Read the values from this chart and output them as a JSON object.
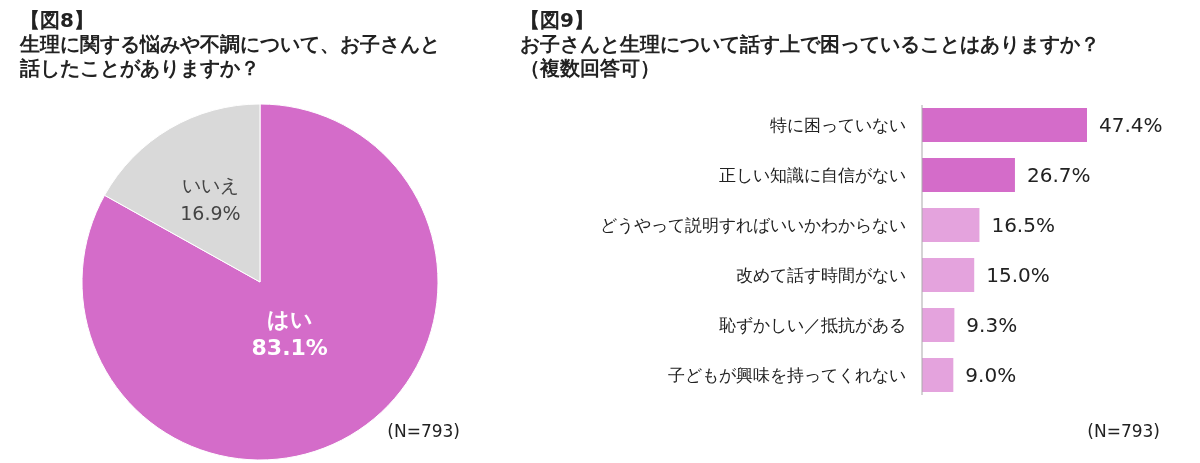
{
  "chart_data": [
    {
      "type": "pie",
      "title": "【図8】",
      "subtitle": "生理に関する悩みや不調について、お子さんと話したことがありますか？",
      "categories": [
        "はい",
        "いいえ"
      ],
      "values": [
        83.1,
        16.9
      ],
      "colors": [
        "#d46cc9",
        "#d9d9d9"
      ],
      "value_labels": [
        "83.1%",
        "16.9%"
      ],
      "annotations": [
        "(N=793)"
      ]
    },
    {
      "type": "bar",
      "orientation": "horizontal",
      "title": "【図9】",
      "subtitle": "お子さんと生理について話す上で困っていることはありますか？（複数回答可）",
      "categories": [
        "特に困っていない",
        "正しい知識に自信がない",
        "どうやって説明すればいいかわからない",
        "改めて話す時間がない",
        "恥ずかしい／抵抗がある",
        "子どもが興味を持ってくれない"
      ],
      "values": [
        47.4,
        26.7,
        16.5,
        15.0,
        9.3,
        9.0
      ],
      "colors": [
        "#d46cc9",
        "#d46cc9",
        "#e4a3dd",
        "#e4a3dd",
        "#e4a3dd",
        "#e4a3dd"
      ],
      "value_labels": [
        "47.4%",
        "26.7%",
        "16.5%",
        "15.0%",
        "9.3%",
        "9.0%"
      ],
      "annotations": [
        "(N=793)"
      ]
    }
  ]
}
